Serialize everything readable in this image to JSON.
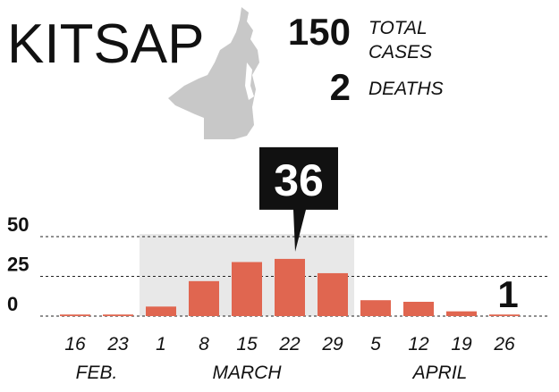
{
  "chart_data": {
    "type": "bar",
    "title": "KITSAP",
    "stats": [
      {
        "value": 150,
        "label": "TOTAL CASES"
      },
      {
        "value": 2,
        "label": "DEATHS"
      }
    ],
    "categories": [
      "16",
      "23",
      "1",
      "8",
      "15",
      "22",
      "29",
      "5",
      "12",
      "19",
      "26"
    ],
    "groups": [
      {
        "name": "FEB.",
        "count": 2
      },
      {
        "name": "MARCH",
        "count": 5,
        "shaded": true
      },
      {
        "name": "APRIL",
        "count": 4
      }
    ],
    "values": [
      1,
      1,
      6,
      22,
      34,
      36,
      27,
      10,
      9,
      3,
      1
    ],
    "value_labels": [
      null,
      null,
      null,
      null,
      null,
      "36",
      null,
      null,
      null,
      null,
      "1"
    ],
    "color": "#e06650",
    "shade_color": "#e8e8e8",
    "ylim": [
      0,
      50
    ],
    "yticks": [
      0,
      25,
      50
    ],
    "grid": true
  }
}
